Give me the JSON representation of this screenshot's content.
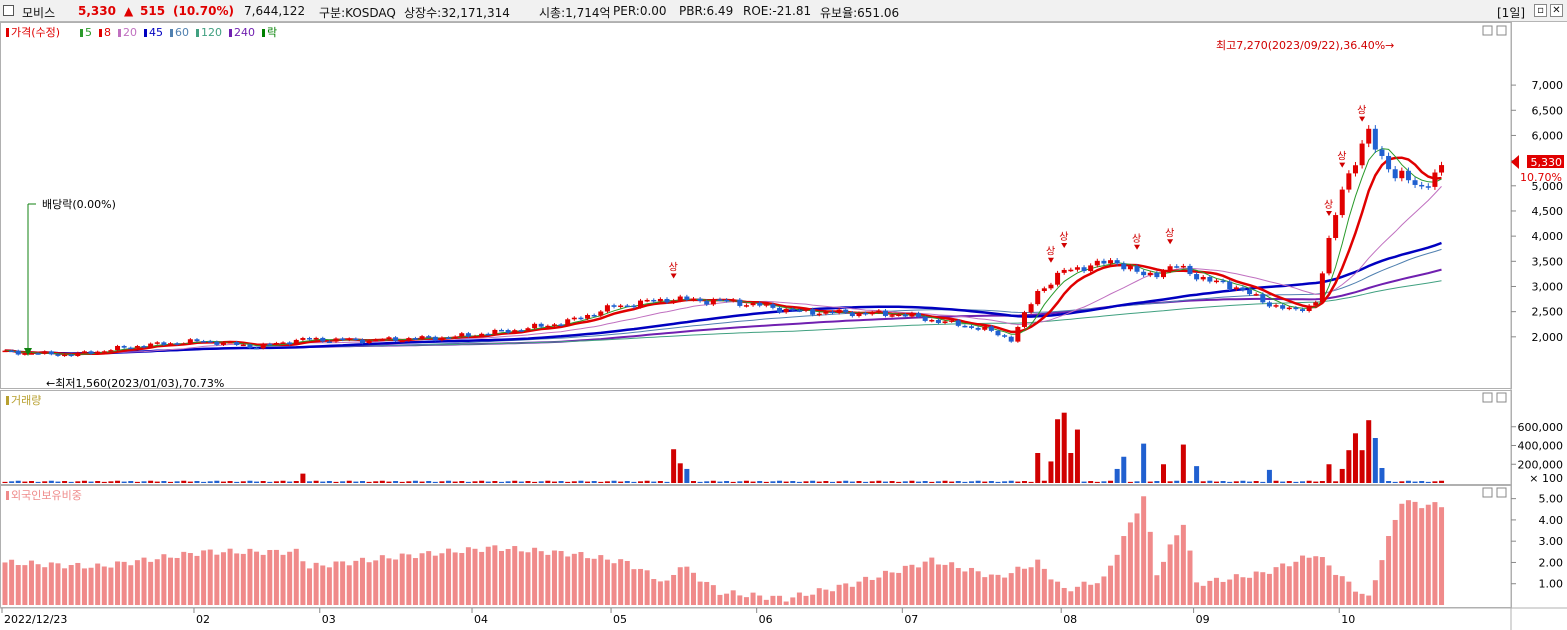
{
  "header": {
    "name": "모비스",
    "price": "5,330",
    "arrow": "▲",
    "change": "515",
    "change_pct": "(10.70%)",
    "volume": "7,644,122",
    "market": "구분:KOSDAQ",
    "shares": "상장수:32,171,314",
    "mcap": "시총:1,714억",
    "per": "PER:0.00",
    "pbr": "PBR:6.49",
    "roe": "ROE:-21.81",
    "float": "유보율:651.06",
    "period": "[1일]",
    "colors": {
      "up": "#e00000",
      "down": "#0040c0"
    }
  },
  "price_panel": {
    "legend_prefix": "가격(수정)",
    "legend": [
      {
        "label": "5",
        "color": "#2a9a2a"
      },
      {
        "label": "8",
        "color": "#e00000"
      },
      {
        "label": "20",
        "color": "#c070c0"
      },
      {
        "label": "45",
        "color": "#0000c0"
      },
      {
        "label": "60",
        "color": "#5080b0"
      },
      {
        "label": "120",
        "color": "#40a080"
      },
      {
        "label": "240",
        "color": "#7020b0"
      },
      {
        "label": "락",
        "color": "#008000"
      }
    ],
    "high_label": "최고7,270(2023/09/22),36.40%→",
    "low_label": "←최저1,560(2023/01/03),70.73%",
    "dividend_label": "배당락(0.00%)",
    "marker_label": "상",
    "current_price": "5,330",
    "current_pct": "10.70%"
  },
  "volume_panel": {
    "title": "거래량",
    "unit": "× 100"
  },
  "foreign_panel": {
    "title": "외국인보유비중"
  },
  "chart_data": [
    {
      "type": "candlestick",
      "title": "가격(수정)",
      "ylim": [
        1500,
        7300
      ],
      "yticks": [
        "2,000",
        "2,500",
        "3,000",
        "3,500",
        "4,000",
        "4,500",
        "5,000",
        "5,500",
        "6,000",
        "6,500",
        "7,000"
      ],
      "x_labels": [
        "2022/12/23",
        "02",
        "03",
        "04",
        "05",
        "06",
        "07",
        "08",
        "09",
        "10"
      ],
      "anchors": [
        [
          0,
          1700
        ],
        [
          10,
          1640
        ],
        [
          20,
          1820
        ],
        [
          30,
          1920
        ],
        [
          38,
          1800
        ],
        [
          45,
          1950
        ],
        [
          55,
          1930
        ],
        [
          68,
          2000
        ],
        [
          78,
          2150
        ],
        [
          85,
          2300
        ],
        [
          92,
          2600
        ],
        [
          100,
          2750
        ],
        [
          110,
          2700
        ],
        [
          120,
          2500
        ],
        [
          135,
          2450
        ],
        [
          148,
          2150
        ],
        [
          152,
          1950
        ],
        [
          156,
          2900
        ],
        [
          160,
          3300
        ],
        [
          163,
          3400
        ],
        [
          168,
          3500
        ],
        [
          172,
          3200
        ],
        [
          177,
          3400
        ],
        [
          182,
          3100
        ],
        [
          186,
          3000
        ],
        [
          190,
          2700
        ],
        [
          195,
          2500
        ],
        [
          198,
          2700
        ],
        [
          202,
          5000
        ],
        [
          206,
          6000
        ],
        [
          210,
          5200
        ],
        [
          214,
          5000
        ],
        [
          217,
          5300
        ]
      ],
      "ma_lines": [
        "5",
        "8",
        "20",
        "45",
        "60",
        "120",
        "240"
      ]
    },
    {
      "type": "bar",
      "title": "거래량",
      "unit": "× 100",
      "ylim": [
        0,
        800000
      ],
      "yticks": [
        "200,000",
        "400,000",
        "600,000"
      ],
      "spikes": [
        [
          45,
          100000
        ],
        [
          101,
          360000
        ],
        [
          102,
          210000
        ],
        [
          103,
          150000
        ],
        [
          156,
          320000
        ],
        [
          158,
          230000
        ],
        [
          159,
          680000
        ],
        [
          160,
          750000
        ],
        [
          161,
          320000
        ],
        [
          162,
          570000
        ],
        [
          168,
          150000
        ],
        [
          169,
          280000
        ],
        [
          172,
          420000
        ],
        [
          175,
          200000
        ],
        [
          178,
          410000
        ],
        [
          180,
          180000
        ],
        [
          191,
          140000
        ],
        [
          200,
          200000
        ],
        [
          202,
          150000
        ],
        [
          203,
          350000
        ],
        [
          204,
          530000
        ],
        [
          205,
          350000
        ],
        [
          206,
          670000
        ],
        [
          207,
          480000
        ],
        [
          208,
          160000
        ]
      ]
    },
    {
      "type": "bar",
      "title": "외국인보유비중",
      "ylim": [
        0,
        5.5
      ],
      "yticks": [
        "1.00",
        "2.00",
        "3.00",
        "4.00",
        "5.00"
      ],
      "anchors": [
        [
          0,
          2.0
        ],
        [
          14,
          1.8
        ],
        [
          30,
          2.5
        ],
        [
          44,
          2.5
        ],
        [
          46,
          1.8
        ],
        [
          60,
          2.3
        ],
        [
          74,
          2.7
        ],
        [
          86,
          2.4
        ],
        [
          94,
          2.0
        ],
        [
          100,
          1.0
        ],
        [
          102,
          1.9
        ],
        [
          108,
          0.6
        ],
        [
          118,
          0.3
        ],
        [
          128,
          1.0
        ],
        [
          140,
          2.1
        ],
        [
          150,
          1.3
        ],
        [
          156,
          2.0
        ],
        [
          160,
          0.7
        ],
        [
          166,
          1.2
        ],
        [
          172,
          5.1
        ],
        [
          174,
          1.5
        ],
        [
          178,
          3.9
        ],
        [
          180,
          1.0
        ],
        [
          190,
          1.5
        ],
        [
          198,
          2.4
        ],
        [
          203,
          1.0
        ],
        [
          206,
          0.3
        ],
        [
          208,
          2.2
        ],
        [
          211,
          4.9
        ],
        [
          214,
          4.7
        ]
      ]
    }
  ]
}
